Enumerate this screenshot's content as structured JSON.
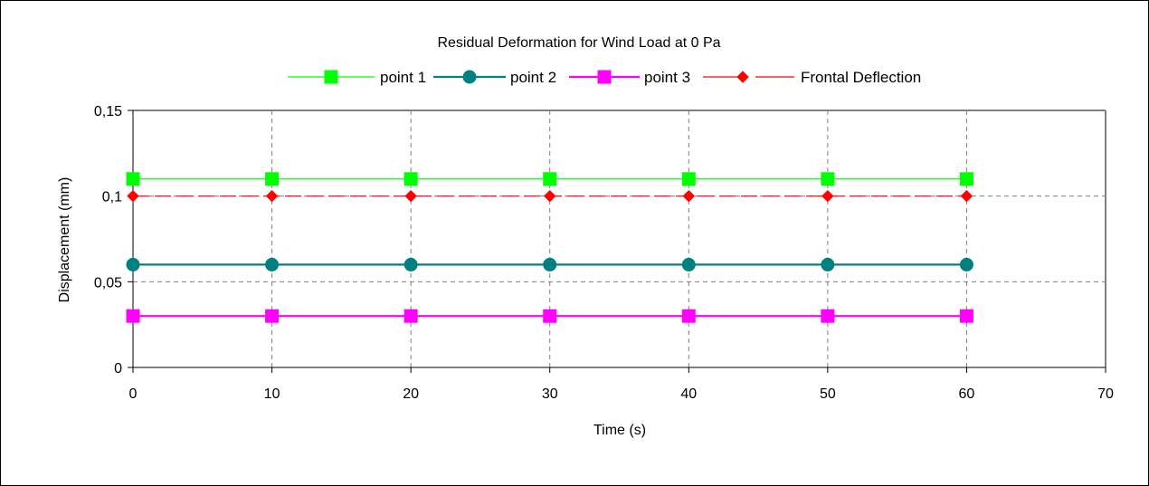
{
  "chart_data": {
    "type": "line",
    "title": "Residual Deformation for Wind Load at 0 Pa",
    "xlabel": "Time (s)",
    "ylabel": "Displacement (mm)",
    "xlim": [
      0,
      70
    ],
    "ylim": [
      0,
      0.15
    ],
    "x_ticks": [
      0,
      10,
      20,
      30,
      40,
      50,
      60,
      70
    ],
    "y_ticks": [
      0,
      0.05,
      0.1,
      0.15
    ],
    "x_tick_labels": [
      "0",
      "10",
      "20",
      "30",
      "40",
      "50",
      "60",
      "70"
    ],
    "y_tick_labels": [
      "0",
      "0,05",
      "0,1",
      "0,15"
    ],
    "grid": true,
    "legend_position": "top",
    "x": [
      0,
      10,
      20,
      30,
      40,
      50,
      60
    ],
    "series": [
      {
        "name": "point 1",
        "values": [
          0.11,
          0.11,
          0.11,
          0.11,
          0.11,
          0.11,
          0.11
        ],
        "color": "#00ff00",
        "marker": "square",
        "line": "solid-thin"
      },
      {
        "name": "point 2",
        "values": [
          0.06,
          0.06,
          0.06,
          0.06,
          0.06,
          0.06,
          0.06
        ],
        "color": "#008080",
        "marker": "circle",
        "line": "solid-thick"
      },
      {
        "name": "point 3",
        "values": [
          0.03,
          0.03,
          0.03,
          0.03,
          0.03,
          0.03,
          0.03
        ],
        "color": "#ff00ff",
        "marker": "square",
        "line": "solid-thick"
      },
      {
        "name": "Frontal Deflection",
        "values": [
          0.1,
          0.1,
          0.1,
          0.1,
          0.1,
          0.1,
          0.1
        ],
        "color": "#ff0000",
        "marker": "diamond",
        "line": "dashed"
      }
    ]
  }
}
